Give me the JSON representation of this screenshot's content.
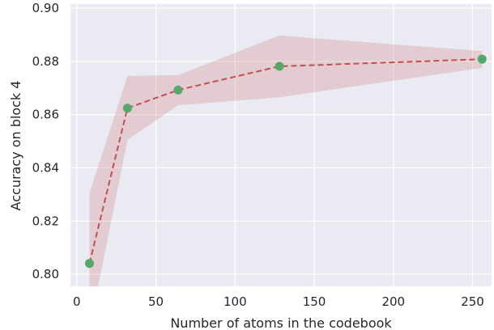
{
  "chart_data": {
    "type": "line",
    "title": "",
    "xlabel": "Number of atoms in the codebook",
    "ylabel": "Accuracy on block 4",
    "xlim": [
      -4,
      262
    ],
    "ylim": [
      0.7955,
      0.9015
    ],
    "xticks": [
      0,
      50,
      100,
      150,
      200,
      250
    ],
    "yticks": [
      0.8,
      0.82,
      0.84,
      0.86,
      0.88,
      0.9
    ],
    "xtick_labels": [
      "0",
      "50",
      "100",
      "150",
      "200",
      "250"
    ],
    "ytick_labels": [
      "0.80",
      "0.82",
      "0.84",
      "0.86",
      "0.88",
      "0.90"
    ],
    "grid": true,
    "series": [
      {
        "x": [
          8,
          32,
          64,
          128,
          256
        ],
        "y": [
          0.8041,
          0.8624,
          0.8692,
          0.8781,
          0.8808
        ],
        "lower": [
          0.7795,
          0.8505,
          0.8635,
          0.8665,
          0.8775
        ],
        "upper": [
          0.8305,
          0.8745,
          0.8748,
          0.8897,
          0.8838
        ],
        "line_style": "dashed",
        "line_color": "#c44e52",
        "marker_color": "#55a868",
        "band_color": "#c44e52"
      }
    ],
    "colors": {
      "background": "#eaeaf2",
      "grid": "#ffffff"
    }
  }
}
